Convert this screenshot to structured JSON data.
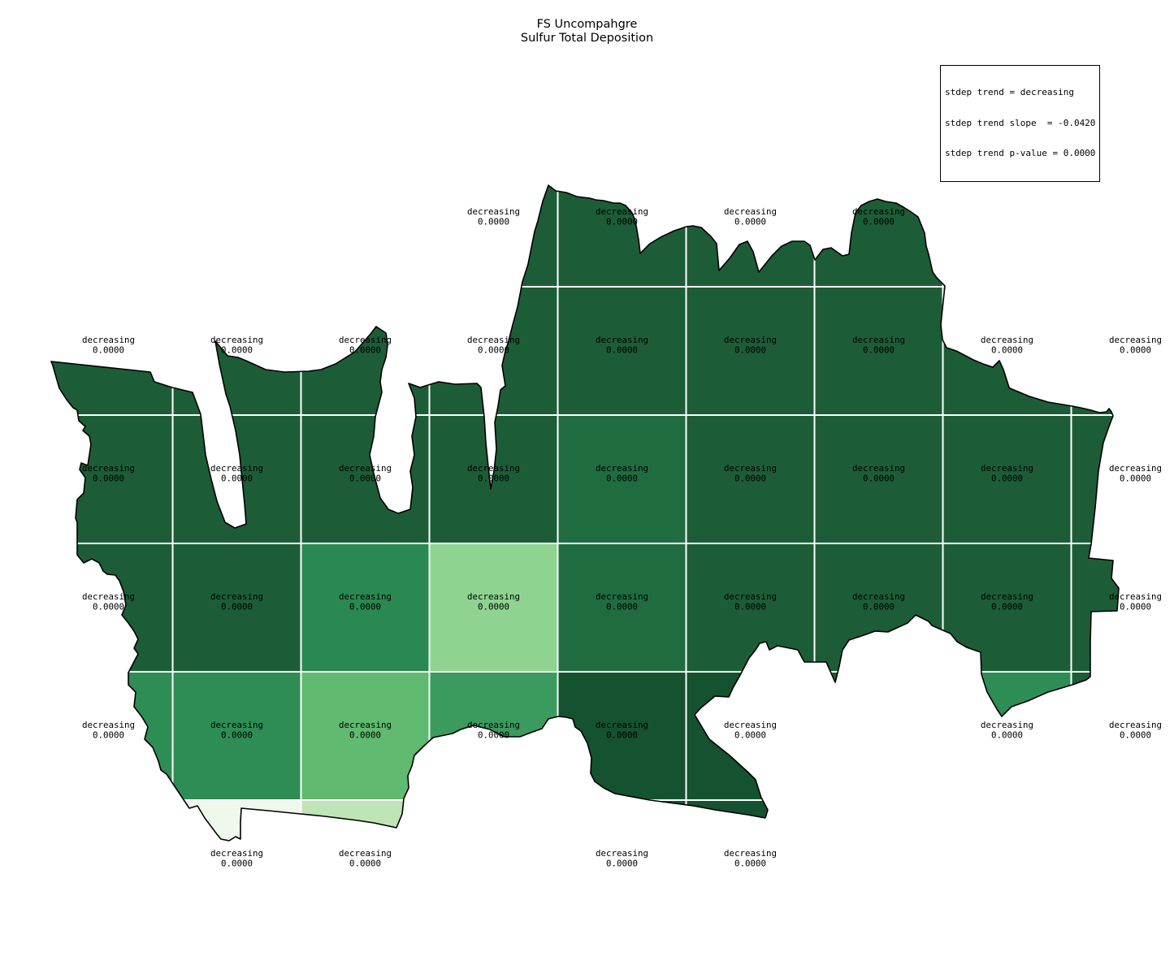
{
  "title": {
    "line1": "FS Uncompahgre",
    "line2": "Sulfur Total Deposition"
  },
  "stats_box": {
    "lines": [
      "stdep trend = decreasing",
      "stdep trend slope  = -0.0420",
      "stdep trend p-value = 0.0000"
    ]
  },
  "map": {
    "trend_label": "decreasing",
    "value_label": "0.0000",
    "label_color": "#000000",
    "outline_color": "#000000",
    "gridline_color": "#ffffff",
    "palette": {
      "dark": "#1C5D37",
      "dark_light": "#1F6C40",
      "darkest": "#15522F",
      "medium": "#2A8852",
      "medium2": "#2E8D55",
      "medium_light": "#3B9A5E",
      "light_medium": "#60BA70",
      "light": "#8FD391",
      "pale_light": "#BFE5B6",
      "pale": "#F0F8EE"
    },
    "cell_colors": [
      [
        "dark",
        "dark",
        "dark",
        "dark",
        "dark",
        "dark",
        "dark",
        "dark",
        "dark"
      ],
      [
        "dark",
        "dark",
        "dark",
        "dark",
        "dark",
        "dark",
        "dark",
        "dark",
        "dark"
      ],
      [
        "dark",
        "dark",
        "dark",
        "dark",
        "dark_light",
        "dark",
        "dark",
        "dark",
        "dark"
      ],
      [
        "dark",
        "dark",
        "medium",
        "light",
        "dark_light",
        "dark",
        "dark",
        "dark",
        "dark"
      ],
      [
        "medium2",
        "medium2",
        "light_medium",
        "medium_light",
        "darkest",
        "darkest",
        "dark",
        "medium2",
        "dark"
      ],
      [
        "dark",
        "pale",
        "pale_light",
        "dark",
        "darkest",
        "darkest",
        "dark",
        "dark",
        "dark"
      ]
    ],
    "labeled_cells": [
      [
        4,
        5,
        6,
        7
      ],
      [
        1,
        2,
        3,
        4,
        5,
        6,
        7,
        8,
        9
      ],
      [
        1,
        2,
        3,
        4,
        5,
        6,
        7,
        8,
        9
      ],
      [
        1,
        2,
        3,
        4,
        5,
        6,
        7,
        8,
        9
      ],
      [
        1,
        2,
        3,
        4,
        5,
        6,
        8,
        9
      ],
      [
        2,
        3,
        5,
        6
      ]
    ]
  },
  "chart_data": {
    "type": "heatmap",
    "title": "FS Uncompahgre Sulfur Total Deposition",
    "annotation_box": {
      "position": "top-right",
      "lines": [
        "stdep trend = decreasing",
        "stdep trend slope  = -0.0420",
        "stdep trend p-value = 0.0000"
      ]
    },
    "summary": {
      "stdep_trend": "decreasing",
      "stdep_trend_slope": -0.042,
      "stdep_trend_p_value": 0.0
    },
    "grid": {
      "columns": 9,
      "rows": 6
    },
    "cell_annotation_trend": "decreasing",
    "cell_annotation_value": "0.0000",
    "cells": [
      {
        "row": 1,
        "cols": [
          4,
          5,
          6,
          7
        ],
        "trend": "decreasing",
        "value": 0.0
      },
      {
        "row": 2,
        "cols": [
          1,
          2,
          3,
          4,
          5,
          6,
          7,
          8,
          9
        ],
        "trend": "decreasing",
        "value": 0.0
      },
      {
        "row": 3,
        "cols": [
          1,
          2,
          3,
          4,
          5,
          6,
          7,
          8,
          9
        ],
        "trend": "decreasing",
        "value": 0.0
      },
      {
        "row": 4,
        "cols": [
          1,
          2,
          3,
          4,
          5,
          6,
          7,
          8,
          9
        ],
        "trend": "decreasing",
        "value": 0.0
      },
      {
        "row": 5,
        "cols": [
          1,
          2,
          3,
          4,
          5,
          6,
          8,
          9
        ],
        "trend": "decreasing",
        "value": 0.0
      },
      {
        "row": 6,
        "cols": [
          2,
          3,
          5,
          6
        ],
        "trend": "decreasing",
        "value": 0.0
      }
    ],
    "legend": "shading from near-white (low) to dark green (high) total sulfur deposition"
  }
}
